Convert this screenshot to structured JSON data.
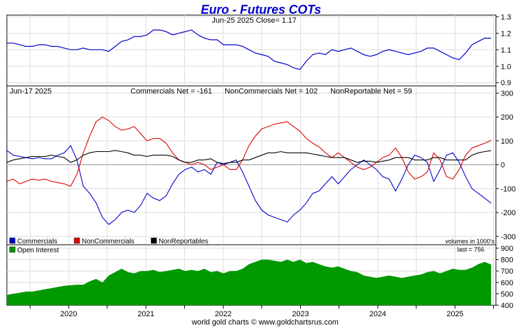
{
  "title": "Euro - Futures COTs",
  "footer": "world gold charts © www.goldchartsrus.com",
  "colors": {
    "title": "#0000cc",
    "price": "#0000cc",
    "commercials": "#0000cc",
    "noncommercials": "#dd0000",
    "nonreportables": "#000000",
    "open_interest": "#009900",
    "grid": "#dddddd",
    "zero_line": "#999999"
  },
  "chart_data": [
    {
      "type": "line",
      "header": "Jun-25  2025   Close= 1.17",
      "ylim": [
        0.9,
        1.3
      ],
      "yticks": [
        "0.9",
        "1.0",
        "1.1",
        "1.2",
        "1.3"
      ],
      "x_start": "2019-01",
      "x_end": "2025-06",
      "series": [
        {
          "values": [
            1.14,
            1.14,
            1.13,
            1.12,
            1.12,
            1.13,
            1.13,
            1.12,
            1.12,
            1.11,
            1.1,
            1.1,
            1.11,
            1.1,
            1.1,
            1.1,
            1.09,
            1.12,
            1.15,
            1.16,
            1.18,
            1.18,
            1.19,
            1.22,
            1.22,
            1.21,
            1.19,
            1.2,
            1.21,
            1.22,
            1.19,
            1.17,
            1.16,
            1.16,
            1.13,
            1.13,
            1.13,
            1.12,
            1.1,
            1.08,
            1.07,
            1.06,
            1.03,
            1.02,
            1.01,
            0.99,
            0.98,
            1.03,
            1.07,
            1.08,
            1.07,
            1.1,
            1.09,
            1.1,
            1.11,
            1.09,
            1.07,
            1.06,
            1.07,
            1.09,
            1.1,
            1.09,
            1.08,
            1.07,
            1.08,
            1.09,
            1.11,
            1.11,
            1.09,
            1.07,
            1.05,
            1.04,
            1.08,
            1.13,
            1.15,
            1.17,
            1.17
          ]
        }
      ]
    },
    {
      "type": "line",
      "header_left": "Jun-17  2025",
      "header_stats": "Commercials Net = -161      NonCommercials Net = 102      NonReportable Net = 59",
      "ylim": [
        -300,
        300
      ],
      "yticks": [
        "300",
        "200",
        "100",
        "0",
        "-100",
        "-200",
        "-300"
      ],
      "volumes_note": "volumes in 1000's",
      "legend": [
        "Commercials",
        "NonCommercials",
        "NonReportables"
      ],
      "series": [
        {
          "name": "Commercials",
          "values": [
            60,
            40,
            35,
            30,
            25,
            30,
            25,
            25,
            40,
            50,
            80,
            20,
            -90,
            -120,
            -160,
            -220,
            -250,
            -230,
            -200,
            -190,
            -200,
            -170,
            -120,
            -140,
            -150,
            -130,
            -80,
            -40,
            -20,
            -10,
            -30,
            -20,
            -40,
            10,
            0,
            10,
            20,
            -30,
            -90,
            -150,
            -190,
            -210,
            -220,
            -230,
            -240,
            -210,
            -190,
            -160,
            -120,
            -110,
            -80,
            -50,
            -80,
            -50,
            -20,
            0,
            20,
            0,
            -20,
            -50,
            -60,
            -110,
            -60,
            0,
            40,
            30,
            10,
            -70,
            -20,
            40,
            50,
            10,
            -50,
            -100,
            -120,
            -140,
            -161
          ]
        },
        {
          "name": "NonCommercials",
          "values": [
            -70,
            -60,
            -80,
            -70,
            -60,
            -65,
            -60,
            -70,
            -75,
            -80,
            -90,
            -40,
            50,
            120,
            180,
            200,
            185,
            160,
            145,
            150,
            160,
            130,
            100,
            110,
            110,
            90,
            50,
            20,
            10,
            0,
            10,
            0,
            -20,
            -10,
            0,
            -20,
            -20,
            20,
            80,
            120,
            150,
            160,
            170,
            175,
            180,
            160,
            140,
            110,
            90,
            75,
            50,
            30,
            50,
            30,
            10,
            -10,
            -20,
            -10,
            10,
            30,
            40,
            70,
            30,
            -30,
            -60,
            -50,
            -30,
            50,
            20,
            -50,
            -60,
            -20,
            40,
            70,
            80,
            90,
            102
          ]
        },
        {
          "name": "NonReportables",
          "values": [
            10,
            20,
            25,
            30,
            35,
            35,
            35,
            40,
            35,
            30,
            10,
            20,
            40,
            50,
            55,
            55,
            55,
            60,
            55,
            50,
            40,
            40,
            35,
            40,
            40,
            40,
            35,
            20,
            10,
            10,
            20,
            20,
            25,
            10,
            5,
            10,
            10,
            20,
            20,
            30,
            40,
            50,
            50,
            55,
            50,
            50,
            50,
            50,
            45,
            40,
            35,
            30,
            30,
            30,
            20,
            10,
            15,
            15,
            10,
            15,
            20,
            30,
            30,
            30,
            20,
            20,
            20,
            30,
            30,
            20,
            20,
            20,
            20,
            40,
            50,
            55,
            59
          ]
        }
      ]
    },
    {
      "type": "area",
      "legend": [
        "Open Interest"
      ],
      "last_label": "last = 756",
      "ylim": [
        400,
        900
      ],
      "yticks": [
        "900",
        "800",
        "700",
        "600",
        "500",
        "400"
      ],
      "xticks": [
        "2020",
        "2021",
        "2022",
        "2023",
        "2024",
        "2025"
      ],
      "series": [
        {
          "name": "Open Interest",
          "values": [
            490,
            500,
            510,
            520,
            520,
            530,
            540,
            550,
            560,
            570,
            575,
            580,
            580,
            610,
            630,
            600,
            660,
            690,
            720,
            690,
            680,
            700,
            700,
            710,
            690,
            700,
            710,
            720,
            700,
            710,
            700,
            720,
            690,
            700,
            680,
            700,
            700,
            720,
            760,
            780,
            800,
            800,
            790,
            780,
            800,
            780,
            800,
            770,
            780,
            760,
            740,
            730,
            740,
            720,
            700,
            690,
            660,
            650,
            640,
            650,
            660,
            650,
            640,
            650,
            660,
            670,
            690,
            700,
            680,
            700,
            720,
            710,
            710,
            730,
            760,
            780,
            756
          ]
        }
      ]
    }
  ]
}
